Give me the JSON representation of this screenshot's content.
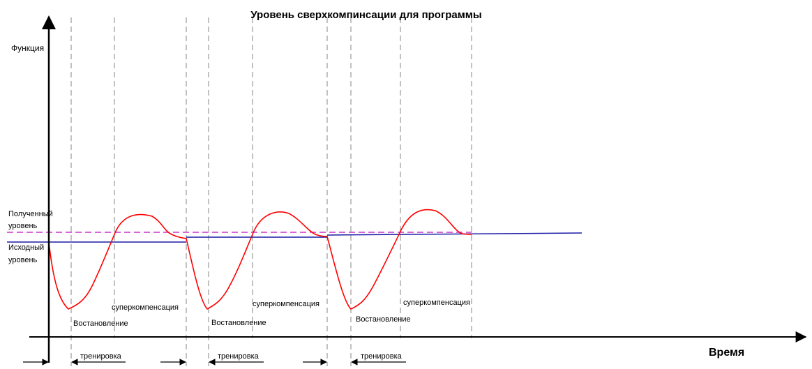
{
  "title": "Уровень сверхкомпинсации для программы",
  "y_axis_label": "Функция",
  "x_axis_label": "Время",
  "levels": {
    "obtained_line1": "Полученный",
    "obtained_line2": "уровень",
    "initial_line1": "Исходный",
    "initial_line2": "уровень"
  },
  "cycles": [
    {
      "recovery": "Востановление",
      "supercompensation": "суперкомпенсация",
      "training": "тренировка"
    },
    {
      "recovery": "Востановление",
      "supercompensation": "суперкомпенсация",
      "training": "тренировка"
    },
    {
      "recovery": "Востановление",
      "supercompensation": "суперкомпенсация",
      "training": "тренировка"
    }
  ],
  "colors": {
    "curve": "#ff0000",
    "baseline": "#1a1aa6",
    "obtained_level": "#cc33cc",
    "guides": "#999999",
    "axes": "#000000"
  }
}
